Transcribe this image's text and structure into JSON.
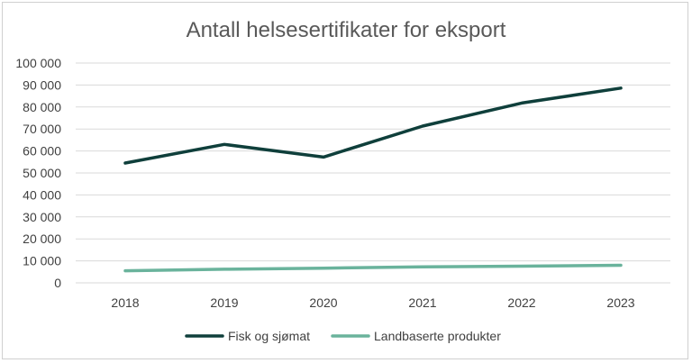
{
  "chart_data": {
    "type": "line",
    "title": "Antall helsesertifikater for eksport",
    "categories": [
      "2018",
      "2019",
      "2020",
      "2021",
      "2022",
      "2023"
    ],
    "series": [
      {
        "name": "Fisk og sjømat",
        "values": [
          54500,
          63000,
          57200,
          71300,
          81800,
          88600
        ],
        "color": "#0f3f3b"
      },
      {
        "name": "Landbaserte produkter",
        "values": [
          5500,
          6200,
          6700,
          7300,
          7600,
          8000
        ],
        "color": "#6ab39c"
      }
    ],
    "ylim": [
      0,
      100000
    ],
    "yticks": [
      "0",
      "10 000",
      "20 000",
      "30 000",
      "40 000",
      "50 000",
      "60 000",
      "70 000",
      "80 000",
      "90 000",
      "100 000"
    ],
    "grid": true,
    "legend": "bottom",
    "gridColor": "#d9d9d9"
  }
}
